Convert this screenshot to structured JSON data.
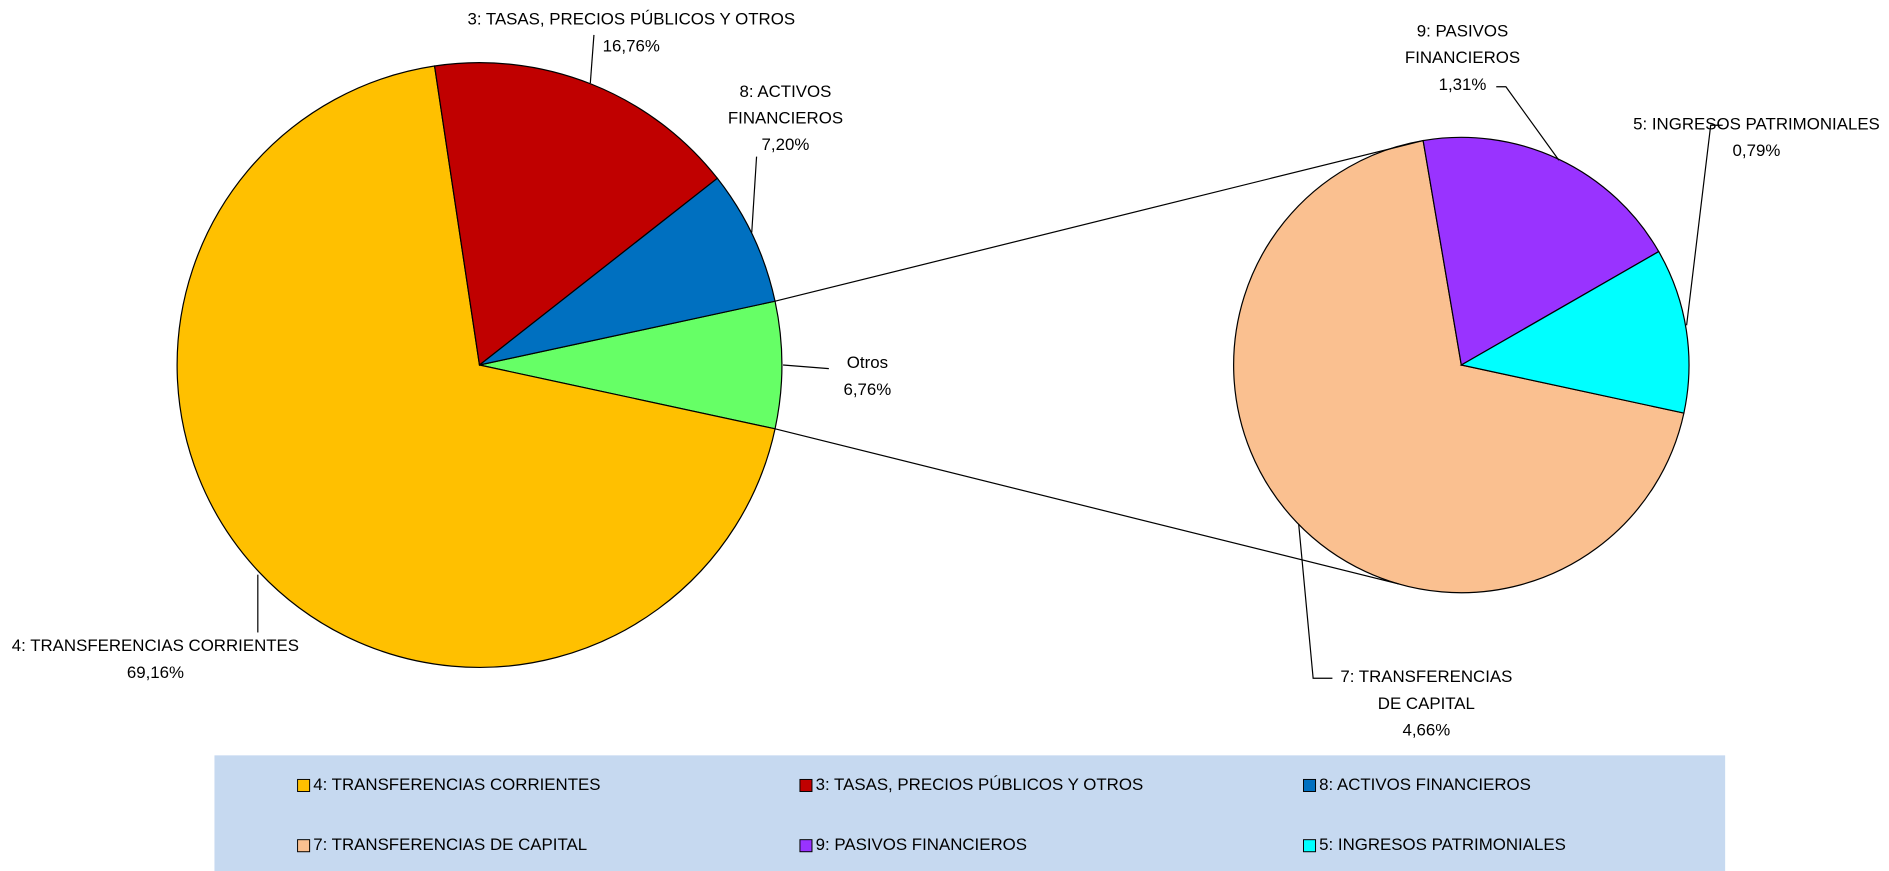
{
  "chart_data": {
    "type": "pie",
    "categories": [
      "4: TRANSFERENCIAS CORRIENTES",
      "3: TASAS, PRECIOS PÚBLICOS Y OTROS",
      "8: ACTIVOS FINANCIEROS"
    ],
    "values": [
      69.16,
      16.76,
      7.2
    ],
    "value_labels": [
      "69,16%",
      "16,76%",
      "7,20%"
    ],
    "colors": [
      "#FFC000",
      "#C00000",
      "#0070C0"
    ],
    "other": {
      "name": "Otros",
      "value": 6.76,
      "value_label": "6,76%",
      "color": "#66FF66"
    },
    "secondary": {
      "categories": [
        "7: TRANSFERENCIAS DE CAPITAL",
        "9: PASIVOS FINANCIEROS",
        "5: INGRESOS PATRIMONIALES"
      ],
      "values": [
        4.66,
        1.31,
        0.79
      ],
      "value_labels": [
        "4,66%",
        "1,31%",
        "0,79%"
      ],
      "colors": [
        "#FAC090",
        "#9933FF",
        "#00FFFF"
      ]
    },
    "legend": "bottom"
  }
}
